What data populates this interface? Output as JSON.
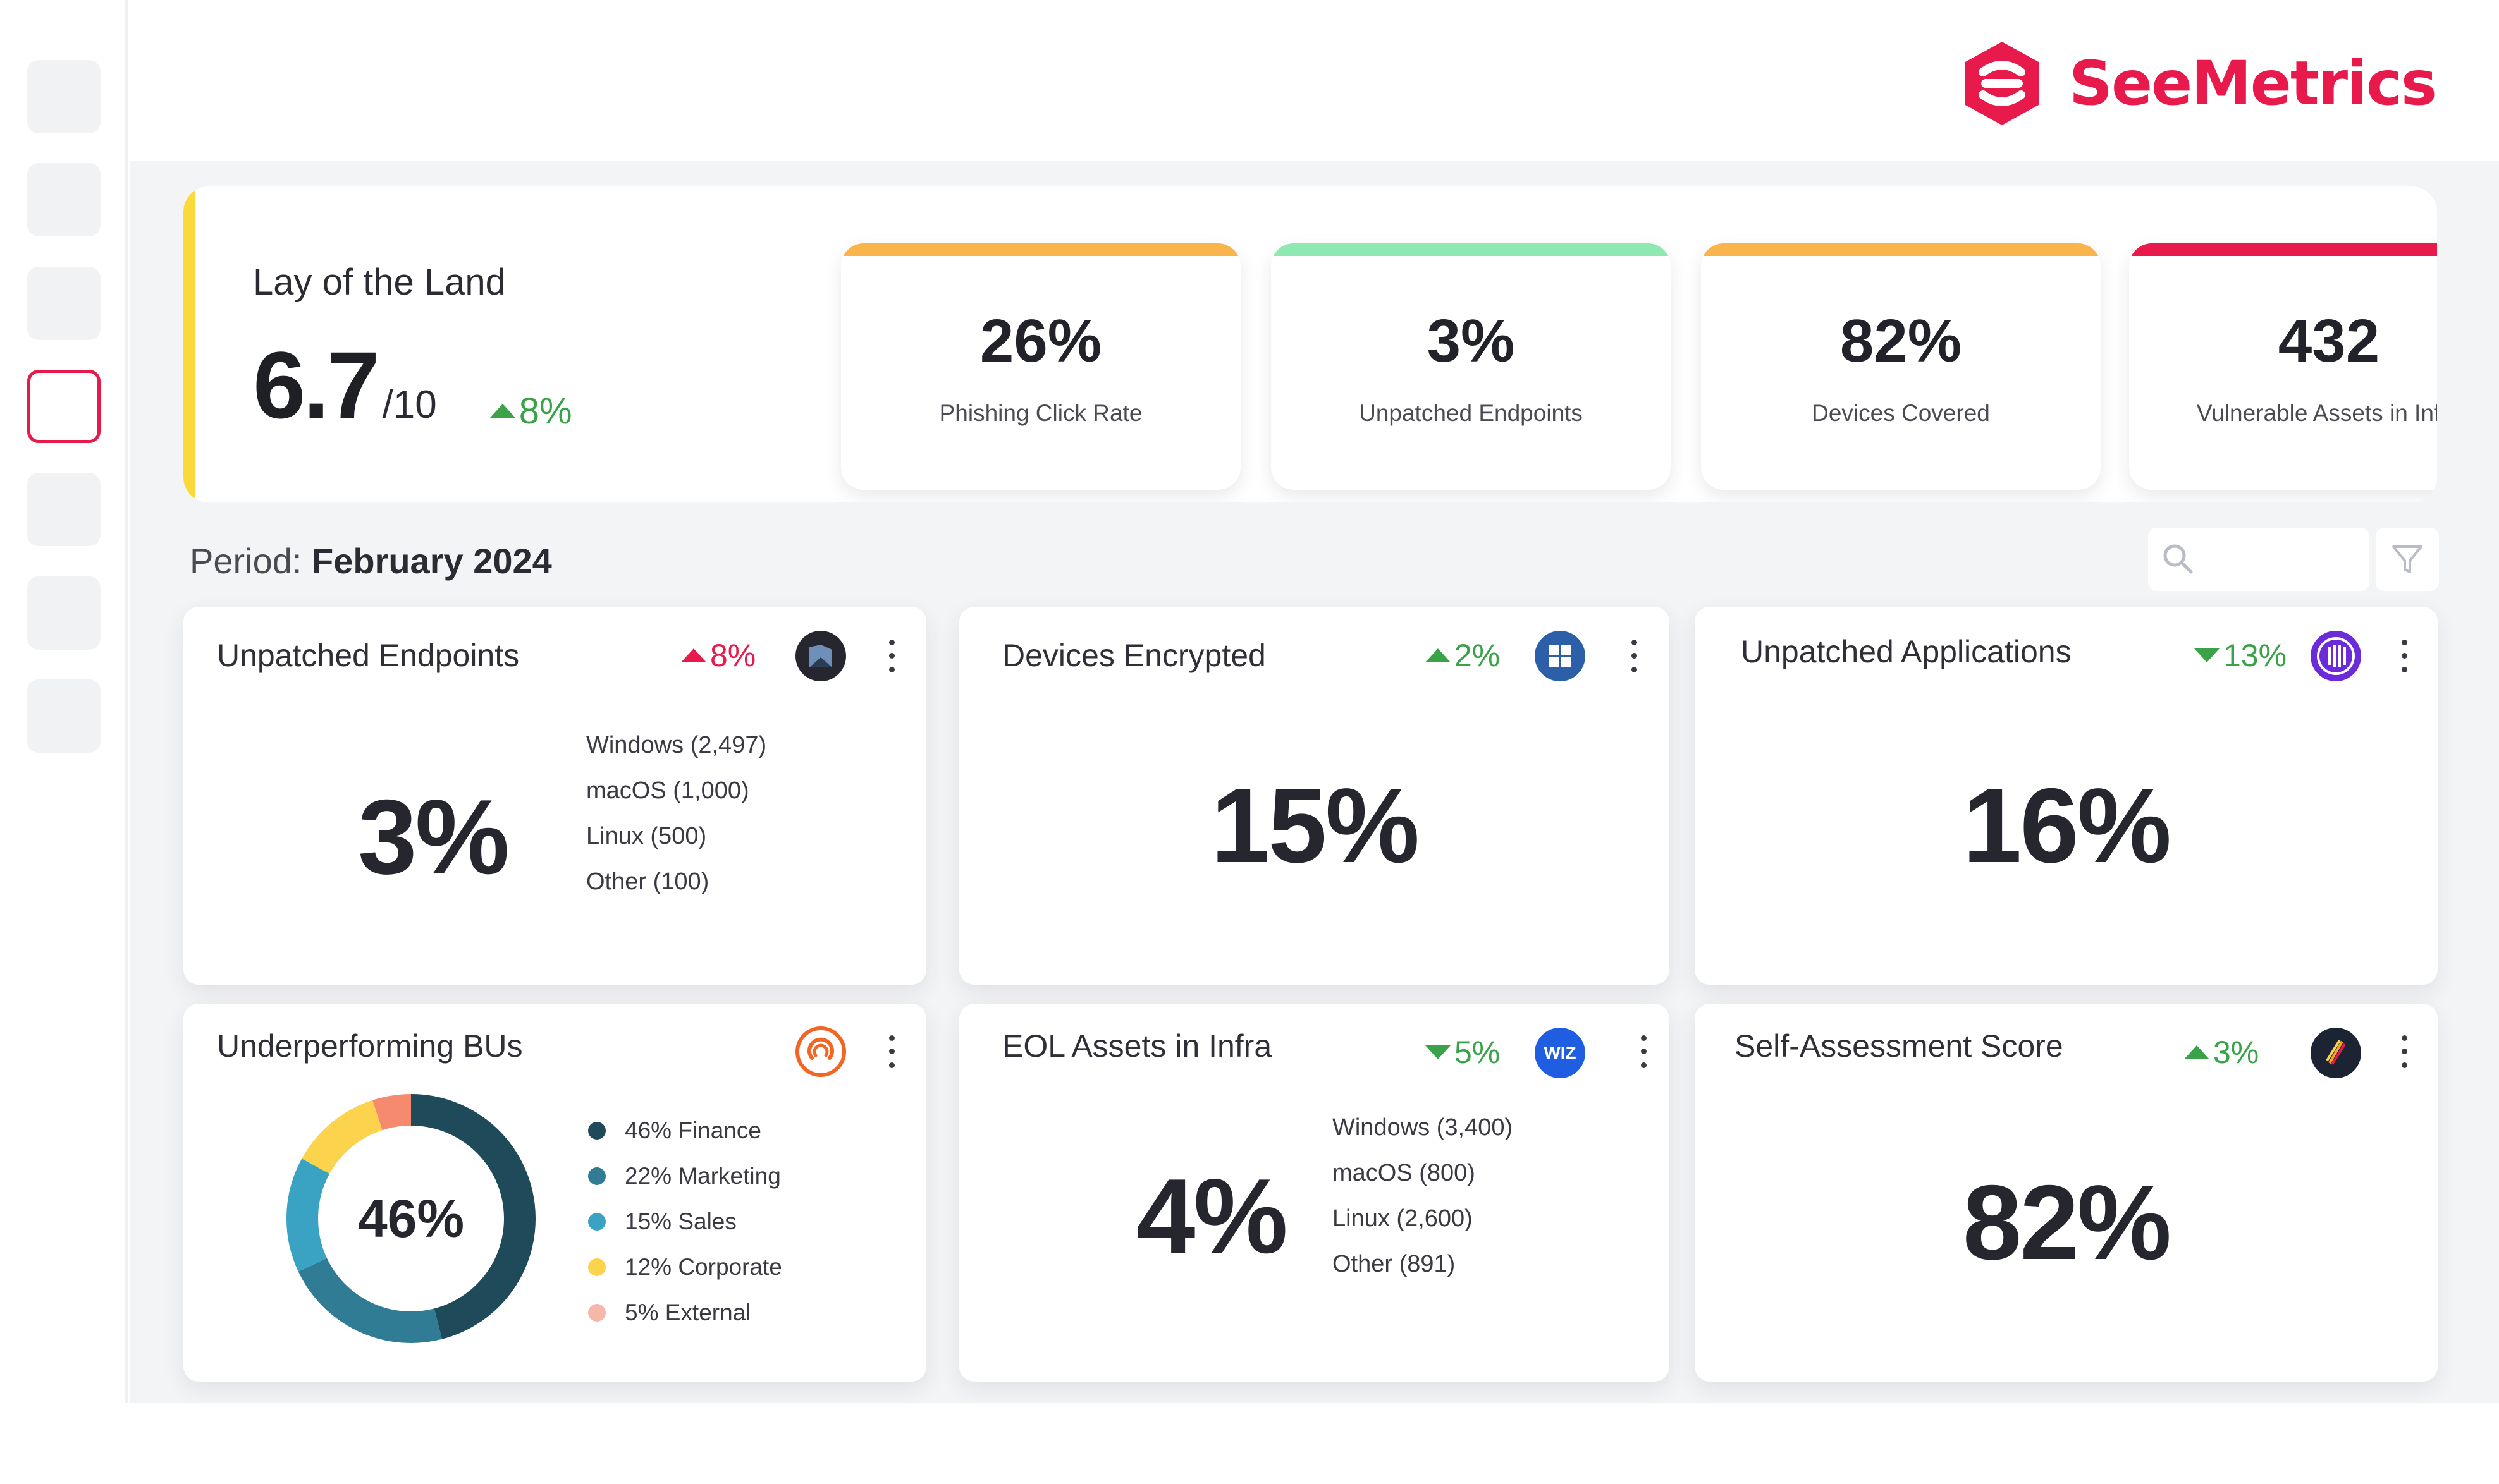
{
  "brand": {
    "name": "SeeMetrics",
    "color": "#e8194b"
  },
  "sidebar": {
    "items": 7,
    "active_index": 3
  },
  "lay_of_the_land": {
    "title": "Lay of the Land",
    "score": "6.7",
    "score_suffix": "/10",
    "delta": "8%",
    "delta_direction": "up",
    "kpis": [
      {
        "value": "26%",
        "label": "Phishing Click Rate",
        "color": "#f9b54c"
      },
      {
        "value": "3%",
        "label": "Unpatched Endpoints",
        "color": "#8de8b1"
      },
      {
        "value": "82%",
        "label": "Devices Covered",
        "color": "#f9b54c"
      },
      {
        "value": "432",
        "label": "Vulnerable Assets in Infra",
        "color": "#e8194b"
      }
    ]
  },
  "period": {
    "label": "Period:",
    "value": "February 2024"
  },
  "toolbar": {
    "search_icon": "search-icon",
    "filter_icon": "filter-icon"
  },
  "cards": {
    "unpatched_endpoints": {
      "title": "Unpatched Endpoints",
      "delta": "8%",
      "delta_direction": "up",
      "delta_color": "#e8194b",
      "value": "3%",
      "icon": "endpoint-vendor-icon",
      "breakdown": [
        "Windows (2,497)",
        "macOS (1,000)",
        "Linux (500)",
        "Other (100)"
      ]
    },
    "devices_encrypted": {
      "title": "Devices Encrypted",
      "delta": "2%",
      "delta_direction": "up",
      "delta_color": "#3aa34a",
      "value": "15%",
      "icon": "windows-icon"
    },
    "unpatched_applications": {
      "title": "Unpatched Applications",
      "delta": "13%",
      "delta_direction": "down",
      "delta_color": "#3aa34a",
      "value": "16%",
      "icon": "app-scanner-icon"
    },
    "underperforming_bus": {
      "title": "Underperforming BUs",
      "value": "46%",
      "icon": "phishing-vendor-icon",
      "legend": [
        {
          "label": "46% Finance",
          "color": "#1f4a5a"
        },
        {
          "label": "22% Marketing",
          "color": "#2f7c94"
        },
        {
          "label": "15% Sales",
          "color": "#3aa3c4"
        },
        {
          "label": "12% Corporate",
          "color": "#fcd34d"
        },
        {
          "label": "5% External",
          "color": "#f7b7a8"
        }
      ]
    },
    "eol_assets": {
      "title": "EOL Assets in Infra",
      "delta": "5%",
      "delta_direction": "down",
      "delta_color": "#3aa34a",
      "value": "4%",
      "icon": "wiz-icon",
      "icon_text": "WIZ",
      "breakdown": [
        "Windows (3,400)",
        "macOS (800)",
        "Linux (2,600)",
        "Other (891)"
      ]
    },
    "self_assessment": {
      "title": "Self-Assessment Score",
      "delta": "3%",
      "delta_direction": "up",
      "delta_color": "#3aa34a",
      "value": "82%",
      "icon": "assessment-vendor-icon"
    }
  },
  "chart_data": {
    "type": "pie",
    "categories": [
      "Finance",
      "Marketing",
      "Sales",
      "Corporate",
      "External"
    ],
    "values": [
      46,
      22,
      15,
      12,
      5
    ]
  }
}
